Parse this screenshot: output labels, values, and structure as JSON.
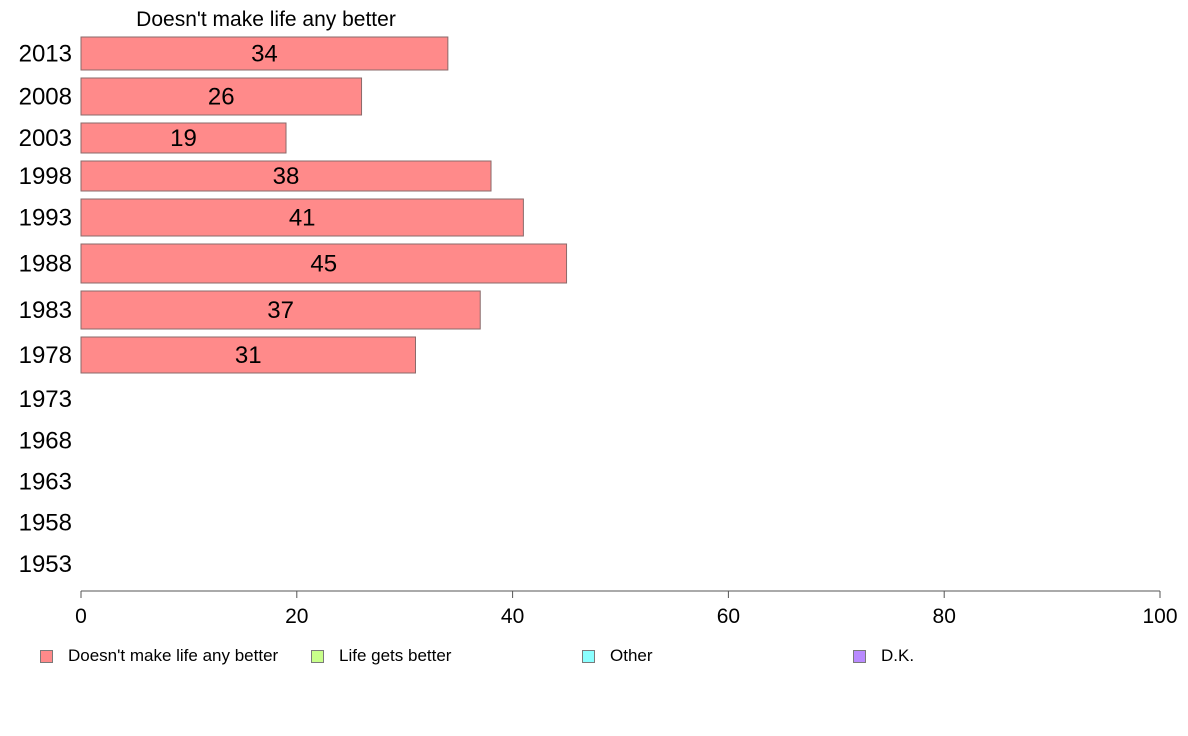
{
  "chart_data": {
    "type": "bar",
    "orientation": "horizontal",
    "panel_title": "Doesn't make life any better",
    "categories": [
      "2013",
      "2008",
      "2003",
      "1998",
      "1993",
      "1988",
      "1983",
      "1978",
      "1973",
      "1968",
      "1963",
      "1958",
      "1953"
    ],
    "series": [
      {
        "name": "Doesn't make life any better",
        "color": "#ff8a8a",
        "values": [
          34,
          26,
          19,
          38,
          41,
          45,
          37,
          31,
          null,
          null,
          null,
          null,
          null
        ]
      }
    ],
    "xlim": [
      0,
      100
    ],
    "xticks": [
      "0",
      "20",
      "40",
      "60",
      "80",
      "100"
    ],
    "grid": false,
    "legend_position": "bottom"
  },
  "legend": [
    {
      "label": "Doesn't make life any better",
      "color": "#ff8a8a"
    },
    {
      "label": "Life gets better",
      "color": "#c8ff8a"
    },
    {
      "label": "Other",
      "color": "#8affff"
    },
    {
      "label": "D.K.",
      "color": "#b98aff"
    }
  ]
}
